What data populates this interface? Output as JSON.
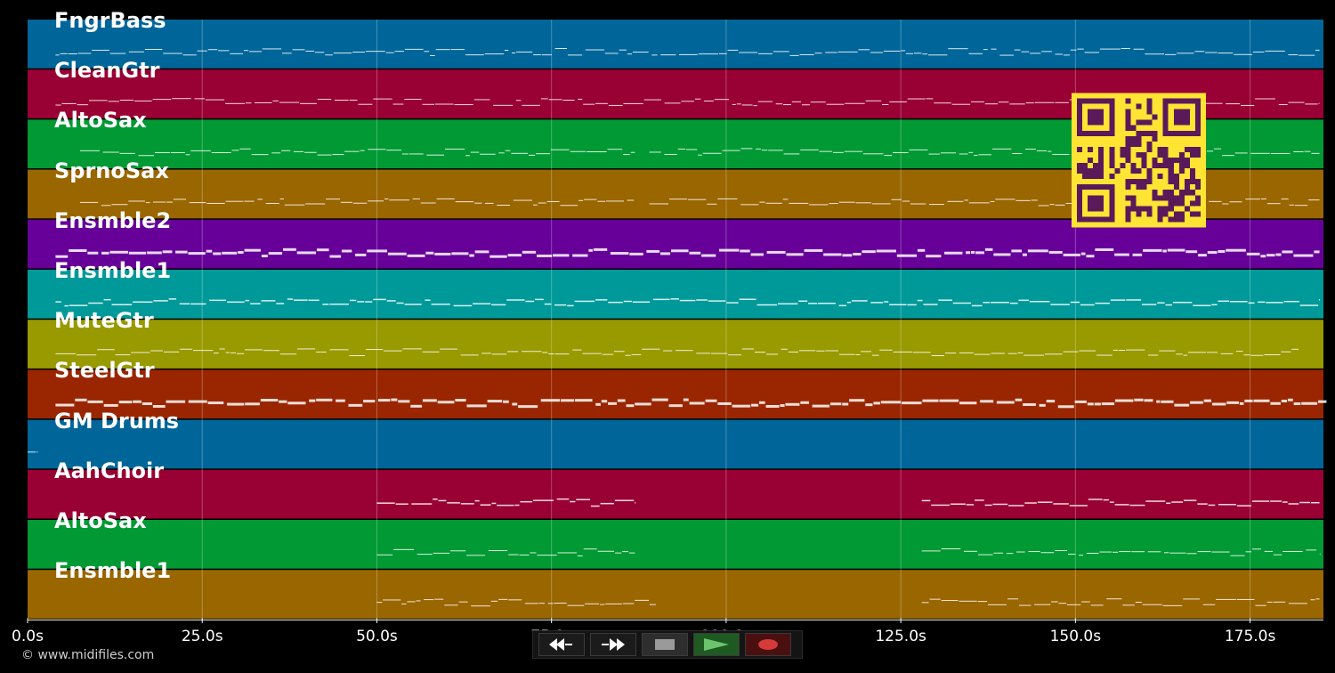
{
  "tracks": [
    {
      "name": "FngrBass",
      "color": "#006699"
    },
    {
      "name": "CleanGtr",
      "color": "#990033"
    },
    {
      "name": "AltoSax",
      "color": "#009933"
    },
    {
      "name": "SprnoSax",
      "color": "#996600"
    },
    {
      "name": "Ensmble2",
      "color": "#660099"
    },
    {
      "name": "Ensmble1",
      "color": "#009999"
    },
    {
      "name": "MuteGtr",
      "color": "#999900"
    },
    {
      "name": "SteelGtr",
      "color": "#992600"
    },
    {
      "name": "GM Drums",
      "color": "#006699"
    },
    {
      "name": "AahChoir",
      "color": "#990033"
    },
    {
      "name": "AltoSax",
      "color": "#009933"
    },
    {
      "name": "Ensmble1",
      "color": "#996600"
    }
  ],
  "timeline": {
    "ticks": [
      "0.0s",
      "25.0s",
      "50.0s",
      "75.0s",
      "100.0s",
      "125.0s",
      "150.0s",
      "175.0s"
    ],
    "max_seconds": 185.5
  },
  "copyright": "© www.midifiles.com",
  "transport": {
    "rewind": "rewind-icon",
    "fast_forward": "fast-forward-icon",
    "stop": "stop-icon",
    "play": "play-icon",
    "record": "record-icon"
  },
  "qr_colors": {
    "fg": "#5a1a5a",
    "bg": "#ffe433"
  }
}
